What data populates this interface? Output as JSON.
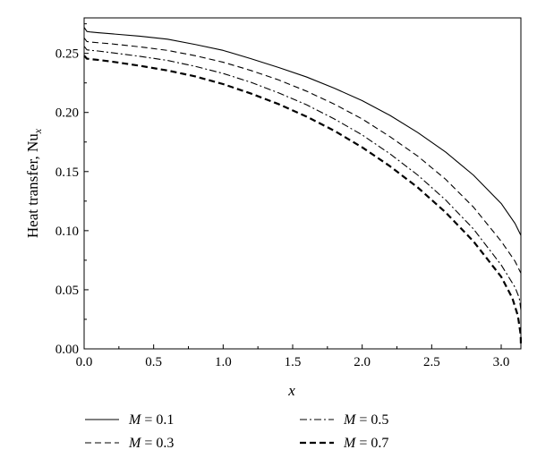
{
  "chart_data": {
    "type": "line",
    "xlabel": "x",
    "ylabel": "Heat transfer, Nu",
    "ylabel_subscript": "x",
    "xlim": [
      0.0,
      3.14159
    ],
    "ylim": [
      0.0,
      0.28
    ],
    "x_ticks": [
      "0.0",
      "0.5",
      "1.0",
      "1.5",
      "2.0",
      "2.5",
      "3.0"
    ],
    "y_ticks": [
      "0.00",
      "0.05",
      "0.10",
      "0.15",
      "0.20",
      "0.25"
    ],
    "grid": false,
    "legend_placement": "below",
    "series": [
      {
        "name": "M = 0.1",
        "legend_var": "M",
        "legend_value": "= 0.1",
        "dash": "solid",
        "width": "thin",
        "x": [
          0.0,
          0.02,
          0.05,
          0.1,
          0.2,
          0.4,
          0.6,
          0.8,
          1.0,
          1.2,
          1.4,
          1.6,
          1.8,
          2.0,
          2.2,
          2.4,
          2.6,
          2.8,
          3.0,
          3.1,
          3.1416
        ],
        "y": [
          0.272,
          0.2685,
          0.268,
          0.2675,
          0.2665,
          0.2645,
          0.262,
          0.2575,
          0.2525,
          0.2455,
          0.238,
          0.23,
          0.2205,
          0.21,
          0.1975,
          0.183,
          0.1665,
          0.147,
          0.123,
          0.106,
          0.096
        ]
      },
      {
        "name": "M = 0.3",
        "legend_var": "M",
        "legend_value": "= 0.3",
        "dash": "dashed",
        "width": "thin",
        "x": [
          0.0,
          0.02,
          0.05,
          0.1,
          0.2,
          0.4,
          0.6,
          0.8,
          1.0,
          1.2,
          1.4,
          1.6,
          1.8,
          2.0,
          2.2,
          2.4,
          2.6,
          2.8,
          3.0,
          3.1,
          3.1416
        ],
        "y": [
          0.263,
          0.26,
          0.2595,
          0.259,
          0.258,
          0.2555,
          0.2525,
          0.248,
          0.2425,
          0.2355,
          0.2275,
          0.218,
          0.207,
          0.1945,
          0.1795,
          0.163,
          0.1435,
          0.12,
          0.091,
          0.074,
          0.064
        ]
      },
      {
        "name": "M = 0.5",
        "legend_var": "M",
        "legend_value": "= 0.5",
        "dash": "dashdot",
        "width": "thin",
        "x": [
          0.0,
          0.02,
          0.05,
          0.1,
          0.2,
          0.4,
          0.6,
          0.8,
          1.0,
          1.2,
          1.4,
          1.6,
          1.8,
          2.0,
          2.2,
          2.4,
          2.6,
          2.8,
          3.0,
          3.1,
          3.13,
          3.1416
        ],
        "y": [
          0.256,
          0.253,
          0.2525,
          0.252,
          0.2505,
          0.2475,
          0.244,
          0.239,
          0.233,
          0.2255,
          0.2165,
          0.2065,
          0.1945,
          0.181,
          0.165,
          0.147,
          0.126,
          0.1015,
          0.071,
          0.052,
          0.043,
          0.033
        ]
      },
      {
        "name": "M = 0.7",
        "legend_var": "M",
        "legend_value": "= 0.7",
        "dash": "dashed",
        "width": "thick",
        "x": [
          0.0,
          0.02,
          0.05,
          0.1,
          0.2,
          0.4,
          0.6,
          0.8,
          1.0,
          1.2,
          1.4,
          1.6,
          1.8,
          2.0,
          2.2,
          2.4,
          2.6,
          2.8,
          3.0,
          3.08,
          3.12,
          3.14,
          3.1416
        ],
        "y": [
          0.248,
          0.2455,
          0.245,
          0.2445,
          0.243,
          0.2395,
          0.2355,
          0.2305,
          0.224,
          0.216,
          0.207,
          0.1965,
          0.1845,
          0.1705,
          0.1545,
          0.1365,
          0.1155,
          0.091,
          0.061,
          0.043,
          0.028,
          0.012,
          0.003
        ]
      }
    ]
  }
}
